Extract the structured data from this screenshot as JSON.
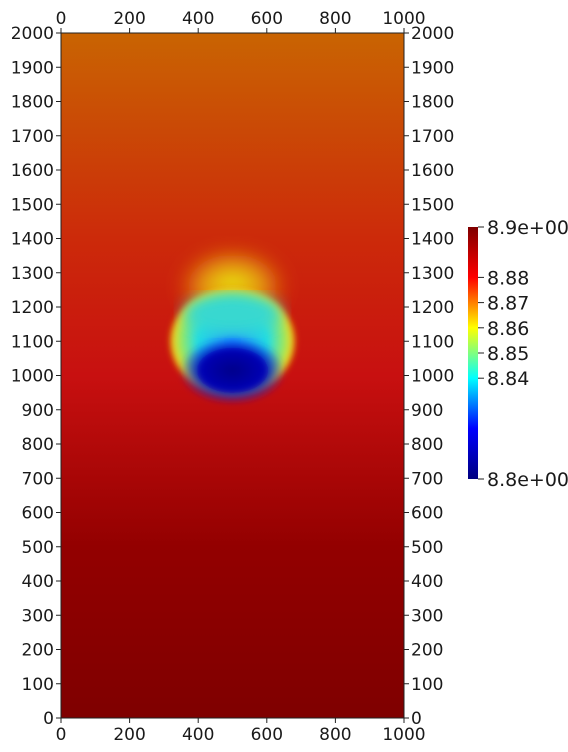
{
  "chart_data": {
    "type": "heatmap",
    "title": "",
    "xlabel": "",
    "ylabel": "",
    "xlim": [
      0,
      1000
    ],
    "ylim": [
      0,
      2000
    ],
    "x_ticks": [
      0,
      200,
      400,
      600,
      800,
      1000
    ],
    "y_ticks": [
      0,
      100,
      200,
      300,
      400,
      500,
      600,
      700,
      800,
      900,
      1000,
      1100,
      1200,
      1300,
      1400,
      1500,
      1600,
      1700,
      1800,
      1900,
      2000
    ],
    "colorbar": {
      "min": 8.8,
      "max": 8.9,
      "min_label": "8.8e+00",
      "max_label": "8.9e+00",
      "ticks": [
        "8.84",
        "8.85",
        "8.86",
        "8.87",
        "8.88"
      ],
      "colormap": [
        "#00007f",
        "#0000ff",
        "#00ffff",
        "#ffff00",
        "#ff0000",
        "#7f0000"
      ],
      "placement": "right"
    },
    "field": {
      "background_gradient": [
        {
          "y": 0,
          "color": "#7f0000"
        },
        {
          "y": 500,
          "color": "#930000"
        },
        {
          "y": 1000,
          "color": "#c81010"
        },
        {
          "y": 1400,
          "color": "#cc2a0a"
        },
        {
          "y": 2000,
          "color": "#c96402"
        }
      ],
      "bubble": {
        "center": [
          500,
          1100
        ],
        "radius_x": 190,
        "radius_y": 165,
        "low_value_core": [
          500,
          1015
        ],
        "high_value_cap": [
          500,
          1200
        ]
      }
    }
  }
}
